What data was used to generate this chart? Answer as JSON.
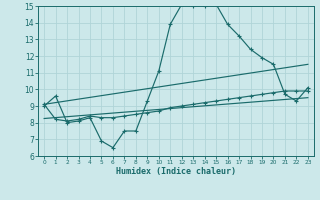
{
  "xlabel": "Humidex (Indice chaleur)",
  "ylabel": "",
  "xlim": [
    -0.5,
    23.5
  ],
  "ylim": [
    6,
    15
  ],
  "yticks": [
    6,
    7,
    8,
    9,
    10,
    11,
    12,
    13,
    14,
    15
  ],
  "xticks": [
    0,
    1,
    2,
    3,
    4,
    5,
    6,
    7,
    8,
    9,
    10,
    11,
    12,
    13,
    14,
    15,
    16,
    17,
    18,
    19,
    20,
    21,
    22,
    23
  ],
  "bg_color": "#cce8ea",
  "line_color": "#1a6b6b",
  "grid_color": "#b0d4d8",
  "line1_x": [
    0,
    1,
    2,
    3,
    4,
    5,
    6,
    7,
    8,
    9,
    10,
    11,
    12,
    13,
    14,
    15,
    16,
    17,
    18,
    19,
    20,
    21,
    22,
    23
  ],
  "line1_y": [
    9.0,
    9.6,
    8.0,
    8.1,
    8.3,
    6.9,
    6.5,
    7.5,
    7.5,
    9.3,
    11.1,
    13.9,
    15.1,
    15.0,
    15.0,
    15.1,
    13.9,
    13.2,
    12.4,
    11.9,
    11.5,
    9.7,
    9.3,
    10.1
  ],
  "line2_x": [
    0,
    1,
    2,
    3,
    4,
    5,
    6,
    7,
    8,
    9,
    10,
    11,
    12,
    13,
    14,
    15,
    16,
    17,
    18,
    19,
    20,
    21,
    22,
    23
  ],
  "line2_y": [
    9.1,
    8.2,
    8.1,
    8.2,
    8.4,
    8.3,
    8.3,
    8.4,
    8.5,
    8.6,
    8.7,
    8.9,
    9.0,
    9.1,
    9.2,
    9.3,
    9.4,
    9.5,
    9.6,
    9.7,
    9.8,
    9.9,
    9.9,
    9.9
  ],
  "line3_x": [
    0,
    23
  ],
  "line3_y": [
    9.1,
    11.5
  ],
  "line4_x": [
    0,
    23
  ],
  "line4_y": [
    8.25,
    9.5
  ]
}
